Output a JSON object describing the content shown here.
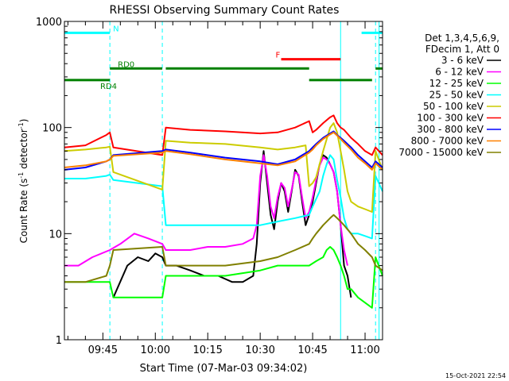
{
  "chart_data": {
    "type": "line",
    "title": "RHESSI Observing Summary Count Rates",
    "xlabel": "Start Time (07-Mar-03 09:34:02)",
    "ylabel_main": "Count Rate (s",
    "ylabel_sup1": "-1",
    "ylabel_mid": " detector",
    "ylabel_sup2": "-1",
    "ylabel_end": ")",
    "yscale": "log",
    "ylim": [
      1,
      1000
    ],
    "xlim_min": [
      34,
      125
    ],
    "yticks": [
      {
        "v": 1,
        "label": "1"
      },
      {
        "v": 10,
        "label": "10"
      },
      {
        "v": 100,
        "label": "100"
      },
      {
        "v": 1000,
        "label": "1000"
      }
    ],
    "xticks": [
      {
        "t": 45,
        "label": "09:45"
      },
      {
        "t": 60,
        "label": "10:00"
      },
      {
        "t": 75,
        "label": "10:15"
      },
      {
        "t": 90,
        "label": "10:30"
      },
      {
        "t": 105,
        "label": "10:45"
      },
      {
        "t": 120,
        "label": "11:00"
      }
    ],
    "legend_header": [
      "Det 1,3,4,5,6,9,",
      "FDecim 1, Att 0"
    ],
    "legend_position": "right",
    "series": [
      {
        "name": "3 - 6 keV",
        "color": "#000000",
        "x": [
          48,
          52,
          55,
          58,
          60,
          62,
          63,
          66,
          70,
          74,
          78,
          82,
          85,
          88,
          89,
          90,
          91,
          92,
          93,
          94,
          95,
          96,
          97,
          98,
          99,
          100,
          101,
          102,
          103,
          104,
          105,
          106,
          107,
          108,
          109,
          110,
          111,
          112,
          113,
          114,
          115,
          116
        ],
        "y": [
          2.5,
          5,
          6,
          5.5,
          6.5,
          6,
          5,
          5,
          4.5,
          4,
          4,
          3.5,
          3.5,
          4,
          8,
          30,
          60,
          30,
          15,
          11,
          20,
          30,
          25,
          16,
          25,
          40,
          35,
          20,
          12,
          15,
          20,
          30,
          45,
          55,
          52,
          45,
          38,
          25,
          12,
          5,
          4,
          2.5
        ]
      },
      {
        "name": "6 - 12 keV",
        "color": "#ff00ff",
        "x": [
          34,
          38,
          42,
          47,
          50,
          54,
          58,
          62,
          63,
          66,
          70,
          75,
          80,
          85,
          88,
          89,
          90,
          91,
          92,
          93,
          94,
          95,
          96,
          97,
          98,
          99,
          100,
          101,
          102,
          103,
          104,
          105,
          106,
          107,
          108,
          109,
          110,
          111,
          112,
          113,
          114,
          115
        ],
        "y": [
          5,
          5,
          6,
          7,
          8,
          10,
          9,
          8,
          7,
          7,
          7,
          7.5,
          7.5,
          8,
          9,
          12,
          35,
          55,
          35,
          18,
          14,
          22,
          30,
          27,
          18,
          26,
          38,
          36,
          22,
          14,
          16,
          22,
          32,
          44,
          52,
          50,
          45,
          38,
          25,
          12,
          7,
          5
        ]
      },
      {
        "name": "12 - 25 keV",
        "color": "#00ff00",
        "x": [
          34,
          40,
          47,
          48,
          62,
          63,
          70,
          80,
          90,
          95,
          100,
          104,
          106,
          108,
          109,
          110,
          111,
          112,
          113,
          114,
          115,
          116,
          118,
          122,
          123,
          125
        ],
        "y": [
          3.5,
          3.5,
          3.5,
          2.5,
          2.5,
          4,
          4,
          4,
          4.5,
          5,
          5,
          5,
          5.5,
          6,
          7,
          7.5,
          7,
          6,
          5,
          4,
          3,
          3,
          2.5,
          2,
          6,
          4
        ]
      },
      {
        "name": "25 - 50 keV",
        "color": "#00ffff",
        "x": [
          34,
          40,
          46,
          47,
          48,
          62,
          63,
          70,
          80,
          90,
          95,
          100,
          104,
          105,
          107,
          108,
          109,
          110,
          111,
          112,
          113,
          114,
          115,
          116,
          118,
          120,
          122,
          123,
          125
        ],
        "y": [
          33,
          33,
          35,
          36,
          32,
          28,
          12,
          12,
          12,
          12,
          13,
          14,
          15,
          18,
          25,
          35,
          45,
          55,
          50,
          32,
          22,
          14,
          11,
          10,
          10,
          9.5,
          9,
          35,
          25
        ]
      },
      {
        "name": "50 - 100 keV",
        "color": "#cccc00",
        "x": [
          34,
          40,
          46,
          47,
          48,
          62,
          63,
          70,
          80,
          90,
          95,
          100,
          103,
          104,
          105,
          106,
          108,
          110,
          111,
          112,
          113,
          114,
          115,
          116,
          118,
          120,
          122,
          123,
          125
        ],
        "y": [
          60,
          62,
          65,
          66,
          38,
          26,
          75,
          72,
          70,
          65,
          62,
          65,
          68,
          28,
          30,
          34,
          60,
          100,
          110,
          90,
          60,
          40,
          25,
          20,
          18,
          17,
          16,
          60,
          40
        ]
      },
      {
        "name": "100 - 300 keV",
        "color": "#ff0000",
        "x": [
          34,
          40,
          46,
          47,
          48,
          62,
          63,
          70,
          80,
          90,
          95,
          100,
          104,
          105,
          106,
          108,
          110,
          111,
          112,
          113,
          114,
          116,
          118,
          120,
          122,
          123,
          125
        ],
        "y": [
          65,
          68,
          85,
          90,
          65,
          55,
          100,
          95,
          92,
          88,
          90,
          100,
          115,
          90,
          95,
          110,
          125,
          130,
          110,
          100,
          95,
          80,
          70,
          60,
          55,
          65,
          55
        ]
      },
      {
        "name": "300 - 800 keV",
        "color": "#0000ff",
        "x": [
          34,
          40,
          46,
          47,
          48,
          62,
          63,
          70,
          80,
          90,
          95,
          100,
          104,
          105,
          106,
          108,
          110,
          111,
          112,
          113,
          114,
          116,
          118,
          120,
          122,
          123,
          125
        ],
        "y": [
          40,
          42,
          48,
          50,
          55,
          60,
          62,
          58,
          52,
          48,
          45,
          50,
          60,
          65,
          70,
          80,
          88,
          92,
          85,
          80,
          75,
          65,
          55,
          48,
          42,
          48,
          42
        ]
      },
      {
        "name": "800 - 7000 keV",
        "color": "#ff8000",
        "x": [
          34,
          40,
          46,
          47,
          48,
          62,
          63,
          70,
          80,
          90,
          95,
          100,
          104,
          105,
          106,
          108,
          110,
          111,
          112,
          113,
          114,
          116,
          118,
          120,
          122,
          123,
          125
        ],
        "y": [
          42,
          44,
          48,
          50,
          54,
          58,
          60,
          56,
          50,
          46,
          44,
          48,
          58,
          62,
          68,
          78,
          86,
          90,
          84,
          78,
          72,
          62,
          52,
          46,
          40,
          46,
          40
        ]
      },
      {
        "name": "7000 - 15000 keV",
        "color": "#808000",
        "x": [
          34,
          40,
          46,
          47,
          48,
          62,
          63,
          70,
          80,
          90,
          95,
          100,
          104,
          105,
          106,
          108,
          110,
          111,
          112,
          113,
          114,
          116,
          118,
          120,
          122,
          123,
          125
        ],
        "y": [
          3.5,
          3.5,
          4,
          5,
          7,
          7.5,
          5,
          5,
          5,
          5.5,
          6,
          7,
          8,
          9,
          10,
          12,
          14,
          15,
          14,
          13,
          12,
          10,
          8,
          7,
          6,
          5,
          4.5
        ]
      }
    ],
    "annotations": [
      {
        "label": "N",
        "color": "#00ffff",
        "segments": [
          [
            34,
            47
          ],
          [
            119,
            125
          ]
        ],
        "level": 780
      },
      {
        "label": "F",
        "color": "#ff0000",
        "segments": [
          [
            96,
            113
          ]
        ],
        "level": 440
      },
      {
        "label": "RD0",
        "color": "#008000",
        "segments": [
          [
            47,
            62
          ],
          [
            63,
            104
          ],
          [
            123,
            125
          ]
        ],
        "level": 360
      },
      {
        "label": "RD4",
        "color": "#008000",
        "segments": [
          [
            34,
            47
          ],
          [
            104,
            122
          ]
        ],
        "level": 280
      }
    ],
    "event_lines_solid": [
      113,
      124
    ],
    "event_lines_dashed": [
      47,
      62,
      123
    ]
  },
  "timestamp": "15-Oct-2021 22:54"
}
